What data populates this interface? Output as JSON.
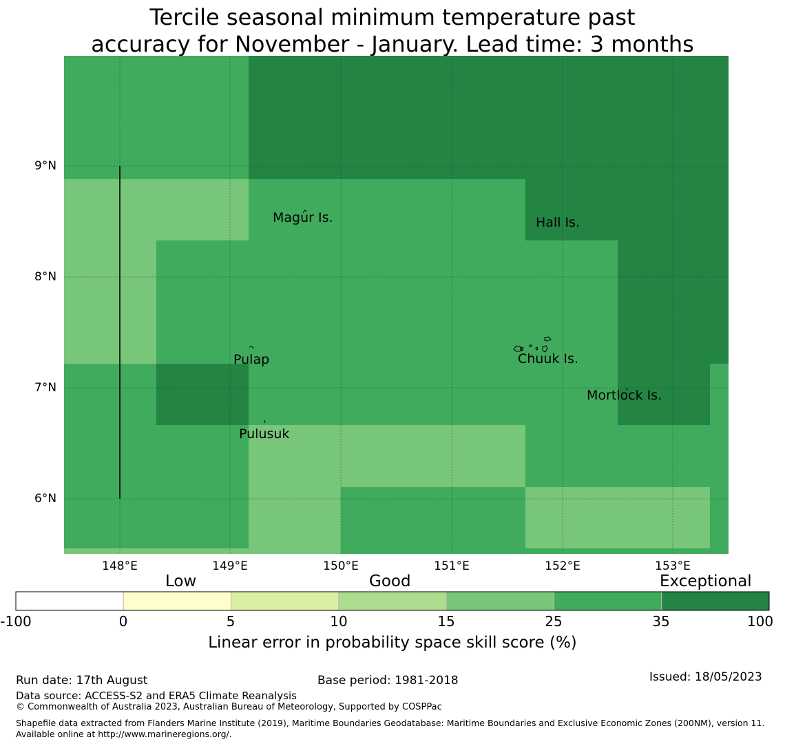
{
  "title": {
    "line1": "Tercile seasonal minimum temperature past",
    "line2": "accuracy for November - January. Lead time: 3 months"
  },
  "map": {
    "lon_range": [
      147.5,
      153.5
    ],
    "lat_range": [
      5.5,
      10.0
    ],
    "lon_ticks": [
      "148°E",
      "149°E",
      "150°E",
      "151°E",
      "152°E",
      "153°E"
    ],
    "lat_ticks": [
      "9°N",
      "8°N",
      "7°N",
      "6°N"
    ],
    "cell_colors": {
      "25": "#41ab5d",
      "15": "#78c679",
      "35": "#238443"
    },
    "places": [
      "Magur Is.",
      "Hall Is.",
      "Pulap",
      "Chuuk Is.",
      "Mortlock Is.",
      "Pulusuk"
    ]
  },
  "colorbar": {
    "categories": [
      "Low",
      "Good",
      "Exceptional"
    ],
    "tick_labels": [
      "-100",
      "0",
      "5",
      "10",
      "15",
      "25",
      "35",
      "100"
    ],
    "colors": [
      "#ffffff",
      "#ffffcc",
      "#d9f0a3",
      "#addd8e",
      "#78c679",
      "#41ab5d",
      "#238443"
    ],
    "label": "Linear error in probability space skill score (%)"
  },
  "footer": {
    "run_date": "Run date: 17th August",
    "base_period": "Base period: 1981-2018",
    "issued": "Issued: 18/05/2023",
    "data_source": "Data source: ACCESS-S2 and ERA5 Climate Reanalysis",
    "copyright": "© Commonwealth of Australia 2023, Australian Bureau of Meteorology, Supported by COSPPac",
    "shapefile": "Shapefile data extracted from Flanders Marine Institute (2019), Maritime Boundaries Geodatabase: Maritime Boundaries and Exclusive Economic Zones (200NM), version 11. Available online at http://www.marineregions.org/."
  }
}
